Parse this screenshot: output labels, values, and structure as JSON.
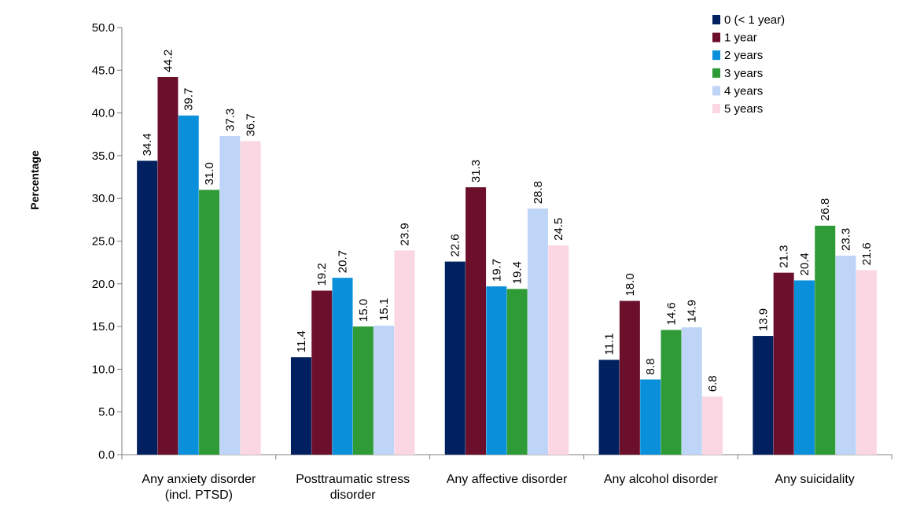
{
  "chart_data": {
    "type": "bar",
    "ylabel": "Percentage",
    "ylim": [
      0,
      50
    ],
    "ytick_step": 5,
    "yticks": [
      "0.0",
      "5.0",
      "10.0",
      "15.0",
      "20.0",
      "25.0",
      "30.0",
      "35.0",
      "40.0",
      "45.0",
      "50.0"
    ],
    "grid": false,
    "legend_position": "top-right",
    "categories": [
      [
        "Any anxiety disorder",
        "(incl. PTSD)"
      ],
      [
        "Posttraumatic stress",
        "disorder"
      ],
      [
        "Any affective disorder"
      ],
      [
        "Any alcohol disorder"
      ],
      [
        "Any suicidality"
      ]
    ],
    "series": [
      {
        "name": "0 (< 1 year)",
        "color": "#002060",
        "values": [
          34.4,
          11.4,
          22.6,
          11.1,
          13.9
        ],
        "labels": [
          "34.4",
          "11.4",
          "22.6",
          "11.1",
          "13.9"
        ]
      },
      {
        "name": "1 year",
        "color": "#6B0F2B",
        "values": [
          44.2,
          19.2,
          31.3,
          18.0,
          21.3
        ],
        "labels": [
          "44.2",
          "19.2",
          "31.3",
          "18.0",
          "21.3"
        ]
      },
      {
        "name": "2 years",
        "color": "#0A8FDB",
        "values": [
          39.7,
          20.7,
          19.7,
          8.8,
          20.4
        ],
        "labels": [
          "39.7",
          "20.7",
          "19.7",
          "8.8",
          "20.4"
        ]
      },
      {
        "name": "3 years",
        "color": "#2E9B37",
        "values": [
          31.0,
          15.0,
          19.4,
          14.6,
          26.8
        ],
        "labels": [
          "31.0",
          "15.0",
          "19.4",
          "14.6",
          "26.8"
        ]
      },
      {
        "name": "4 years",
        "color": "#BFD5F7",
        "values": [
          37.3,
          15.1,
          28.8,
          14.9,
          23.3
        ],
        "labels": [
          "37.3",
          "15.1",
          "28.8",
          "14.9",
          "23.3"
        ]
      },
      {
        "name": "5 years",
        "color": "#FAD7E2",
        "values": [
          36.7,
          23.9,
          24.5,
          6.8,
          21.6
        ],
        "labels": [
          "36.7",
          "23.9",
          "24.5",
          "6.8",
          "21.6"
        ]
      }
    ]
  }
}
